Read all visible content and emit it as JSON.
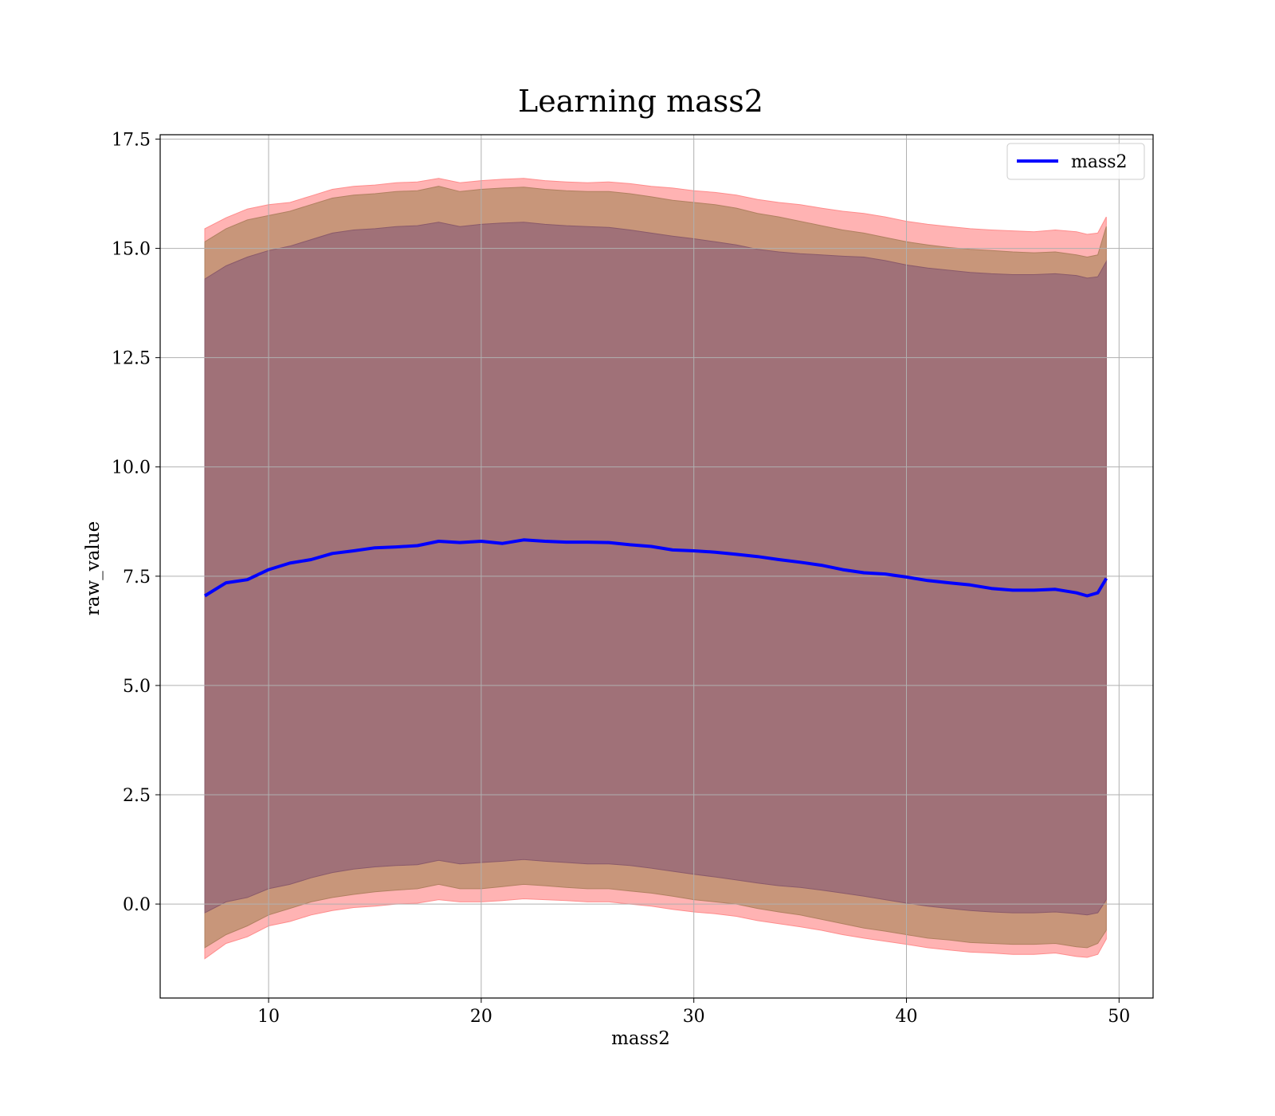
{
  "chart_data": {
    "type": "line",
    "title": "Learning mass2",
    "xlabel": "mass2",
    "ylabel": "raw_value",
    "xlim": [
      4.9,
      51.6
    ],
    "ylim": [
      -2.15,
      17.6
    ],
    "xticks": [
      10,
      20,
      30,
      40,
      50
    ],
    "yticks": [
      0.0,
      2.5,
      5.0,
      7.5,
      10.0,
      12.5,
      15.0,
      17.5
    ],
    "xtick_labels": [
      "10",
      "20",
      "30",
      "40",
      "50"
    ],
    "ytick_labels": [
      "0.0",
      "2.5",
      "5.0",
      "7.5",
      "10.0",
      "12.5",
      "15.0",
      "17.5"
    ],
    "grid": true,
    "legend_position": "top-right",
    "series": [
      {
        "name": "mass2",
        "color": "#0000ff",
        "x": [
          7.0,
          8.0,
          9.0,
          10.0,
          11.0,
          12.0,
          13.0,
          14.0,
          15.0,
          16.0,
          17.0,
          18.0,
          19.0,
          20.0,
          21.0,
          22.0,
          23.0,
          24.0,
          25.0,
          26.0,
          27.0,
          28.0,
          29.0,
          30.0,
          31.0,
          32.0,
          33.0,
          34.0,
          35.0,
          36.0,
          37.0,
          38.0,
          39.0,
          40.0,
          41.0,
          42.0,
          43.0,
          44.0,
          45.0,
          46.0,
          47.0,
          48.0,
          48.5,
          49.0,
          49.4
        ],
        "y": [
          7.05,
          7.35,
          7.42,
          7.65,
          7.8,
          7.88,
          8.02,
          8.08,
          8.15,
          8.17,
          8.2,
          8.3,
          8.27,
          8.3,
          8.25,
          8.33,
          8.3,
          8.28,
          8.28,
          8.27,
          8.22,
          8.18,
          8.1,
          8.08,
          8.05,
          8.0,
          7.95,
          7.88,
          7.82,
          7.75,
          7.65,
          7.58,
          7.55,
          7.48,
          7.4,
          7.35,
          7.3,
          7.22,
          7.18,
          7.18,
          7.2,
          7.12,
          7.05,
          7.12,
          7.45
        ],
        "band_outer_upper": [
          15.45,
          15.7,
          15.9,
          16.0,
          16.05,
          16.2,
          16.35,
          16.42,
          16.45,
          16.5,
          16.52,
          16.6,
          16.5,
          16.55,
          16.58,
          16.6,
          16.55,
          16.52,
          16.5,
          16.52,
          16.48,
          16.42,
          16.38,
          16.32,
          16.28,
          16.22,
          16.12,
          16.05,
          16.0,
          15.92,
          15.85,
          15.8,
          15.72,
          15.62,
          15.55,
          15.5,
          15.45,
          15.42,
          15.4,
          15.38,
          15.42,
          15.38,
          15.32,
          15.35,
          15.72
        ],
        "band_outer_lower": [
          -1.25,
          -0.9,
          -0.75,
          -0.5,
          -0.4,
          -0.25,
          -0.15,
          -0.08,
          -0.05,
          0.0,
          0.02,
          0.1,
          0.05,
          0.05,
          0.08,
          0.12,
          0.1,
          0.08,
          0.05,
          0.05,
          0.0,
          -0.05,
          -0.12,
          -0.18,
          -0.22,
          -0.28,
          -0.38,
          -0.45,
          -0.52,
          -0.6,
          -0.7,
          -0.78,
          -0.85,
          -0.92,
          -1.0,
          -1.05,
          -1.1,
          -1.12,
          -1.15,
          -1.15,
          -1.12,
          -1.2,
          -1.22,
          -1.15,
          -0.8
        ],
        "band_inner_upper": [
          15.15,
          15.45,
          15.65,
          15.75,
          15.85,
          16.0,
          16.15,
          16.22,
          16.25,
          16.3,
          16.32,
          16.42,
          16.3,
          16.35,
          16.38,
          16.4,
          16.35,
          16.32,
          16.3,
          16.3,
          16.25,
          16.18,
          16.1,
          16.05,
          16.0,
          15.92,
          15.8,
          15.72,
          15.62,
          15.52,
          15.42,
          15.35,
          15.25,
          15.15,
          15.08,
          15.02,
          14.98,
          14.95,
          14.92,
          14.9,
          14.92,
          14.85,
          14.8,
          14.85,
          15.5
        ],
        "band_inner_lower": [
          -1.0,
          -0.7,
          -0.5,
          -0.25,
          -0.1,
          0.05,
          0.15,
          0.22,
          0.28,
          0.32,
          0.35,
          0.45,
          0.35,
          0.35,
          0.4,
          0.45,
          0.42,
          0.38,
          0.35,
          0.35,
          0.3,
          0.25,
          0.18,
          0.1,
          0.05,
          0.0,
          -0.1,
          -0.18,
          -0.25,
          -0.35,
          -0.45,
          -0.55,
          -0.62,
          -0.7,
          -0.78,
          -0.82,
          -0.88,
          -0.9,
          -0.92,
          -0.92,
          -0.9,
          -0.98,
          -1.0,
          -0.9,
          -0.6
        ],
        "band_core_upper": [
          14.3,
          14.6,
          14.8,
          14.95,
          15.05,
          15.2,
          15.35,
          15.42,
          15.45,
          15.5,
          15.52,
          15.6,
          15.5,
          15.55,
          15.58,
          15.6,
          15.55,
          15.52,
          15.5,
          15.48,
          15.42,
          15.35,
          15.28,
          15.22,
          15.15,
          15.08,
          14.98,
          14.92,
          14.88,
          14.85,
          14.82,
          14.8,
          14.72,
          14.62,
          14.55,
          14.5,
          14.45,
          14.42,
          14.4,
          14.4,
          14.42,
          14.38,
          14.32,
          14.35,
          14.7
        ],
        "band_core_lower": [
          -0.2,
          0.05,
          0.15,
          0.35,
          0.45,
          0.6,
          0.72,
          0.8,
          0.85,
          0.88,
          0.9,
          1.0,
          0.92,
          0.95,
          0.98,
          1.02,
          0.98,
          0.95,
          0.92,
          0.92,
          0.88,
          0.82,
          0.75,
          0.68,
          0.62,
          0.55,
          0.48,
          0.42,
          0.38,
          0.32,
          0.25,
          0.18,
          0.1,
          0.02,
          -0.05,
          -0.1,
          -0.15,
          -0.18,
          -0.2,
          -0.2,
          -0.18,
          -0.22,
          -0.25,
          -0.2,
          0.1
        ]
      }
    ],
    "band_colors": {
      "outer": "#ffb3b3",
      "inner": "#c8967a",
      "core": "#a07178"
    }
  }
}
